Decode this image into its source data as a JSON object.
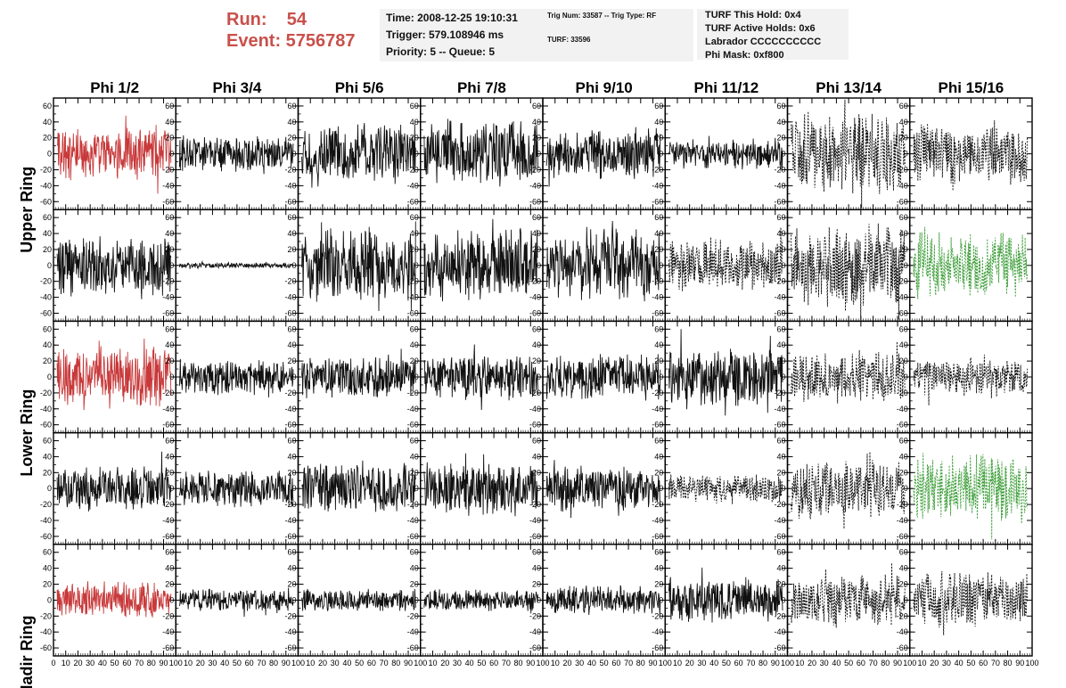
{
  "header": {
    "run_label": "Run:    54",
    "event_label": "Event: 5756787"
  },
  "info_box_1": {
    "time": "Time: 2008-12-25 19:10:31",
    "trigger": "Trigger: 579.108946 ms",
    "priority": "Priority: 5 -- Queue: 5"
  },
  "info_box_2": {
    "trig": "Trig Num: 33587 -- Trig Type: RF",
    "turf": "TURF: 33596"
  },
  "info_box_3": {
    "hold": "TURF This Hold: 0x4",
    "active": "TURF Active Holds: 0x6",
    "labrador": "Labrador CCCCCCCCCC",
    "mask": "Phi Mask: 0xf800"
  },
  "colors": {
    "trace_normal": "#111111",
    "trace_red": "#c8393a",
    "trace_green": "#3e9e3a",
    "header_red": "#c9504b",
    "info_bg": "#f2f2f2"
  },
  "chart_data": {
    "type": "line",
    "columns": [
      "Phi 1/2",
      "Phi 3/4",
      "Phi 5/6",
      "Phi 7/8",
      "Phi 9/10",
      "Phi 11/12",
      "Phi 13/14",
      "Phi 15/16"
    ],
    "rows": [
      "Upper Ring",
      "",
      "Lower Ring",
      "",
      "Nadir Ring"
    ],
    "xlim": [
      0,
      100
    ],
    "ylim": [
      -70,
      70
    ],
    "x_ticks": [
      0,
      10,
      20,
      30,
      40,
      50,
      60,
      70,
      80,
      90,
      100
    ],
    "y_ticks": [
      -60,
      -40,
      -20,
      0,
      20,
      40,
      60
    ],
    "grid": false,
    "panels": [
      {
        "row": 0,
        "col": 0,
        "style": "red-solid",
        "amplitude": 35
      },
      {
        "row": 0,
        "col": 1,
        "style": "solid",
        "amplitude": 25
      },
      {
        "row": 0,
        "col": 2,
        "style": "solid",
        "amplitude": 40
      },
      {
        "row": 0,
        "col": 3,
        "style": "solid",
        "amplitude": 45
      },
      {
        "row": 0,
        "col": 4,
        "style": "solid",
        "amplitude": 35
      },
      {
        "row": 0,
        "col": 5,
        "style": "solid",
        "amplitude": 20
      },
      {
        "row": 0,
        "col": 6,
        "style": "dashed",
        "amplitude": 55
      },
      {
        "row": 0,
        "col": 7,
        "style": "dashed",
        "amplitude": 40
      },
      {
        "row": 1,
        "col": 0,
        "style": "solid",
        "amplitude": 40
      },
      {
        "row": 1,
        "col": 1,
        "style": "solid",
        "amplitude": 4
      },
      {
        "row": 1,
        "col": 2,
        "style": "solid",
        "amplitude": 50
      },
      {
        "row": 1,
        "col": 3,
        "style": "solid",
        "amplitude": 50
      },
      {
        "row": 1,
        "col": 4,
        "style": "solid",
        "amplitude": 50
      },
      {
        "row": 1,
        "col": 5,
        "style": "dashed",
        "amplitude": 35
      },
      {
        "row": 1,
        "col": 6,
        "style": "dashed",
        "amplitude": 55
      },
      {
        "row": 1,
        "col": 7,
        "style": "green-dashed",
        "amplitude": 45
      },
      {
        "row": 2,
        "col": 0,
        "style": "red-solid",
        "amplitude": 40
      },
      {
        "row": 2,
        "col": 1,
        "style": "solid",
        "amplitude": 25
      },
      {
        "row": 2,
        "col": 2,
        "style": "solid",
        "amplitude": 30
      },
      {
        "row": 2,
        "col": 3,
        "style": "solid",
        "amplitude": 30
      },
      {
        "row": 2,
        "col": 4,
        "style": "solid",
        "amplitude": 30
      },
      {
        "row": 2,
        "col": 5,
        "style": "solid",
        "amplitude": 40
      },
      {
        "row": 2,
        "col": 6,
        "style": "dashed",
        "amplitude": 35
      },
      {
        "row": 2,
        "col": 7,
        "style": "dashed",
        "amplitude": 25
      },
      {
        "row": 3,
        "col": 0,
        "style": "solid",
        "amplitude": 30
      },
      {
        "row": 3,
        "col": 1,
        "style": "solid",
        "amplitude": 25
      },
      {
        "row": 3,
        "col": 2,
        "style": "solid",
        "amplitude": 35
      },
      {
        "row": 3,
        "col": 3,
        "style": "solid",
        "amplitude": 35
      },
      {
        "row": 3,
        "col": 4,
        "style": "solid",
        "amplitude": 30
      },
      {
        "row": 3,
        "col": 5,
        "style": "dashed",
        "amplitude": 20
      },
      {
        "row": 3,
        "col": 6,
        "style": "dashed",
        "amplitude": 40
      },
      {
        "row": 3,
        "col": 7,
        "style": "green-dashed",
        "amplitude": 45
      },
      {
        "row": 4,
        "col": 0,
        "style": "red-solid",
        "amplitude": 25
      },
      {
        "row": 4,
        "col": 1,
        "style": "solid",
        "amplitude": 15
      },
      {
        "row": 4,
        "col": 2,
        "style": "solid",
        "amplitude": 15
      },
      {
        "row": 4,
        "col": 3,
        "style": "solid",
        "amplitude": 15
      },
      {
        "row": 4,
        "col": 4,
        "style": "solid",
        "amplitude": 20
      },
      {
        "row": 4,
        "col": 5,
        "style": "solid",
        "amplitude": 30
      },
      {
        "row": 4,
        "col": 6,
        "style": "dashed",
        "amplitude": 35
      },
      {
        "row": 4,
        "col": 7,
        "style": "dashed",
        "amplitude": 40
      }
    ]
  }
}
